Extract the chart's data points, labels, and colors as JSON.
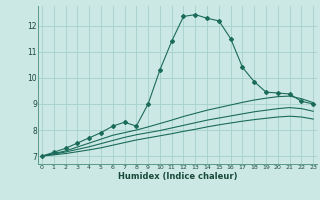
{
  "xlabel": "Humidex (Indice chaleur)",
  "ylabel": "",
  "background_color": "#cce8e4",
  "grid_color": "#aad4cf",
  "line_color": "#1a6b5a",
  "x_ticks": [
    0,
    1,
    2,
    3,
    4,
    5,
    6,
    7,
    8,
    9,
    10,
    11,
    12,
    13,
    14,
    15,
    16,
    17,
    18,
    19,
    20,
    21,
    22,
    23
  ],
  "y_ticks": [
    7,
    8,
    9,
    10,
    11,
    12
  ],
  "xlim": [
    -0.3,
    23.3
  ],
  "ylim": [
    6.7,
    12.75
  ],
  "series": [
    {
      "x": [
        0,
        1,
        2,
        3,
        4,
        5,
        6,
        7,
        8,
        9,
        10,
        11,
        12,
        13,
        14,
        15,
        16,
        17,
        18,
        19,
        20,
        21,
        22,
        23
      ],
      "y": [
        7.0,
        7.15,
        7.3,
        7.5,
        7.7,
        7.9,
        8.15,
        8.3,
        8.15,
        9.0,
        10.3,
        11.4,
        12.35,
        12.42,
        12.28,
        12.18,
        11.5,
        10.4,
        9.85,
        9.45,
        9.42,
        9.38,
        9.1,
        9.0
      ],
      "marker": "D",
      "markersize": 2.0,
      "linewidth": 0.8
    },
    {
      "x": [
        0,
        1,
        2,
        3,
        4,
        5,
        6,
        7,
        8,
        9,
        10,
        11,
        12,
        13,
        14,
        15,
        16,
        17,
        18,
        19,
        20,
        21,
        22,
        23
      ],
      "y": [
        7.0,
        7.1,
        7.2,
        7.35,
        7.5,
        7.65,
        7.8,
        7.9,
        8.0,
        8.12,
        8.25,
        8.38,
        8.52,
        8.64,
        8.76,
        8.86,
        8.96,
        9.06,
        9.15,
        9.22,
        9.28,
        9.3,
        9.2,
        9.05
      ],
      "marker": null,
      "markersize": 0,
      "linewidth": 0.8
    },
    {
      "x": [
        0,
        1,
        2,
        3,
        4,
        5,
        6,
        7,
        8,
        9,
        10,
        11,
        12,
        13,
        14,
        15,
        16,
        17,
        18,
        19,
        20,
        21,
        22,
        23
      ],
      "y": [
        7.0,
        7.08,
        7.16,
        7.26,
        7.36,
        7.48,
        7.6,
        7.72,
        7.82,
        7.9,
        7.98,
        8.08,
        8.18,
        8.28,
        8.38,
        8.46,
        8.54,
        8.62,
        8.7,
        8.76,
        8.82,
        8.86,
        8.82,
        8.72
      ],
      "marker": null,
      "markersize": 0,
      "linewidth": 0.8
    },
    {
      "x": [
        0,
        1,
        2,
        3,
        4,
        5,
        6,
        7,
        8,
        9,
        10,
        11,
        12,
        13,
        14,
        15,
        16,
        17,
        18,
        19,
        20,
        21,
        22,
        23
      ],
      "y": [
        7.0,
        7.05,
        7.1,
        7.17,
        7.24,
        7.32,
        7.42,
        7.52,
        7.62,
        7.7,
        7.78,
        7.86,
        7.95,
        8.03,
        8.12,
        8.2,
        8.27,
        8.34,
        8.4,
        8.45,
        8.5,
        8.53,
        8.5,
        8.42
      ],
      "marker": null,
      "markersize": 0,
      "linewidth": 0.8
    }
  ]
}
